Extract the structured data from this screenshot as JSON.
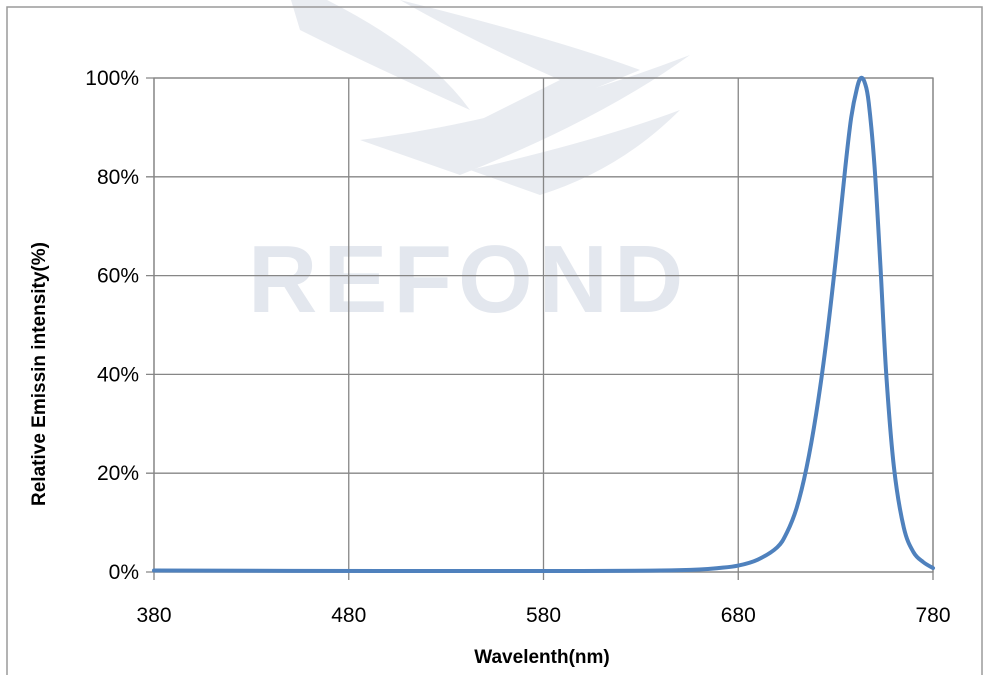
{
  "chart_data": {
    "type": "line",
    "title": "",
    "xlabel": "Wavelenth(nm)",
    "ylabel": "Relative Emissin intensity(%)",
    "xlim": [
      380,
      780
    ],
    "ylim": [
      0,
      100
    ],
    "x_ticks": [
      380,
      480,
      580,
      680,
      780
    ],
    "y_ticks": [
      "0%",
      "20%",
      "40%",
      "60%",
      "80%",
      "100%"
    ],
    "y_tick_values": [
      0,
      20,
      40,
      60,
      80,
      100
    ],
    "grid": true,
    "legend": "none",
    "line_color": "#4f81bd",
    "watermark": "REFOND",
    "series": [
      {
        "x": [
          380,
          500,
          600,
          640,
          660,
          670,
          680,
          690,
          700,
          705,
          710,
          715,
          720,
          725,
          730,
          735,
          738,
          741,
          743,
          745,
          747,
          750,
          753,
          756,
          760,
          765,
          770,
          775,
          780
        ],
        "values": [
          0.3,
          0.2,
          0.2,
          0.3,
          0.5,
          0.8,
          1.3,
          2.5,
          5,
          8,
          13,
          21,
          32,
          46,
          63,
          82,
          92,
          98,
          100,
          99,
          95,
          82,
          62,
          40,
          21,
          9,
          4,
          2,
          0.8
        ]
      }
    ]
  }
}
